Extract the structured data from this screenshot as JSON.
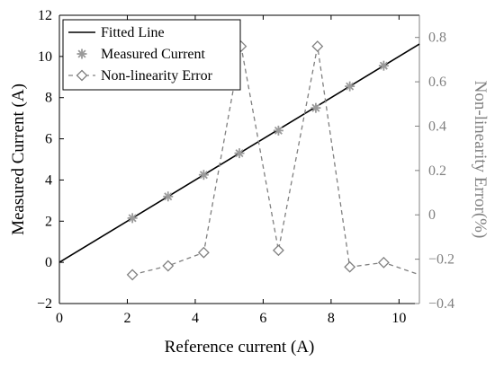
{
  "chart_data": {
    "type": "line",
    "xlabel": "Reference current (A)",
    "ylabel_left": "Measured Current (A)",
    "ylabel_right": "Non-linearity Error(%)",
    "xlim": [
      0,
      10.6
    ],
    "ylim_left": [
      -2,
      12
    ],
    "ylim_right": [
      -0.4,
      0.9
    ],
    "x_ticks": [
      "0",
      "2",
      "4",
      "6",
      "8",
      "10"
    ],
    "y_left_ticks": [
      "−2",
      "0",
      "2",
      "4",
      "6",
      "8",
      "10",
      "12"
    ],
    "y_right_ticks": [
      "−0.4",
      "−0.2",
      "0",
      "0.2",
      "0.4",
      "0.6",
      "0.8"
    ],
    "grid": false,
    "legend_position": "top-left",
    "legend": [
      "Fitted Line",
      "Measured Current",
      "Non-linearity Error"
    ],
    "series": [
      {
        "name": "Fitted Line",
        "axis": "left",
        "style": "solid",
        "marker": "none",
        "color": "#000000",
        "x": [
          0,
          10.6
        ],
        "y": [
          0,
          10.6
        ]
      },
      {
        "name": "Measured Current",
        "axis": "left",
        "style": "none",
        "marker": "asterisk",
        "color": "#9a9a9a",
        "x": [
          2.15,
          3.2,
          4.25,
          5.3,
          6.45,
          7.55,
          8.55,
          9.55
        ],
        "y": [
          2.15,
          3.2,
          4.25,
          5.3,
          6.4,
          7.5,
          8.55,
          9.55
        ]
      },
      {
        "name": "Non-linearity Error",
        "axis": "right",
        "style": "dashed",
        "marker": "diamond",
        "color": "#808080",
        "x": [
          2.15,
          3.2,
          4.25,
          5.35,
          6.45,
          7.6,
          8.55,
          9.55,
          10.6
        ],
        "y": [
          -0.27,
          -0.23,
          -0.17,
          0.76,
          -0.16,
          0.76,
          -0.235,
          -0.215,
          -0.27
        ]
      }
    ]
  }
}
